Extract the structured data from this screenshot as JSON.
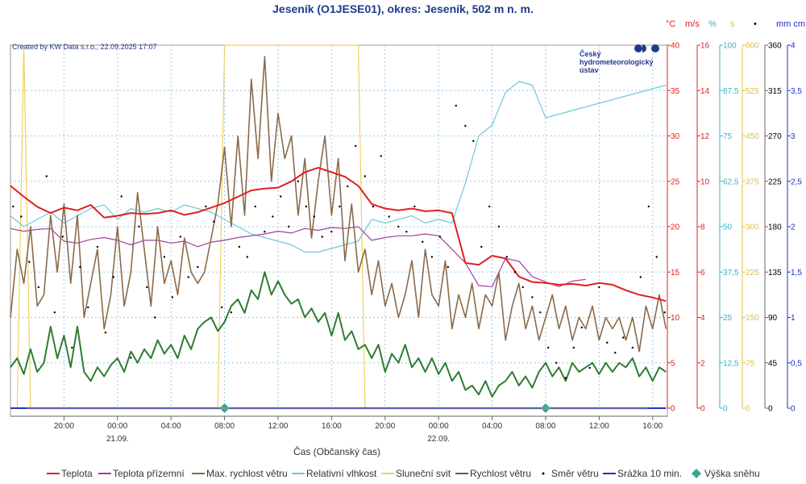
{
  "chart_data": {
    "type": "line",
    "title": "Jeseník (O1JESE01), okres: Jeseník, 502 m n. m.",
    "credit": "Created by KW Data s.r.o., 22.09.2025 17:07",
    "logo_lines": [
      "Český",
      "hydrometeorologický",
      "ústav"
    ],
    "xlabel": "Čas (Občanský čas)",
    "x_ticks": [
      "20:00",
      "00:00",
      "04:00",
      "08:00",
      "12:00",
      "16:00",
      "20:00",
      "00:00",
      "04:00",
      "08:00",
      "12:00",
      "16:00"
    ],
    "x_tick_hours": [
      20,
      24,
      28,
      32,
      36,
      40,
      44,
      48,
      52,
      56,
      60,
      64
    ],
    "date_labels": [
      {
        "label": "21.09.",
        "hour": 24
      },
      {
        "label": "22.09."
      }
    ],
    "date_label_hours": [
      24,
      48
    ],
    "x_range_hours": [
      16,
      65.1
    ],
    "axes": [
      {
        "key": "temp",
        "unit": "°C",
        "color": "#e02020",
        "ticks": [
          "0",
          "5",
          "10",
          "15",
          "20",
          "25",
          "30",
          "35",
          "40"
        ],
        "max": 40
      },
      {
        "key": "wind",
        "unit": "m/s",
        "color": "#e02020",
        "ticks": [
          "0",
          "2",
          "4",
          "6",
          "8",
          "10",
          "12",
          "14",
          "16"
        ],
        "max": 16
      },
      {
        "key": "rh",
        "unit": "%",
        "color": "#40b0c0",
        "ticks": [
          "0",
          "12,5",
          "25",
          "37,5",
          "50",
          "62,5",
          "75",
          "87,5",
          "100"
        ],
        "max": 100
      },
      {
        "key": "sun",
        "unit": "s",
        "color": "#e0c040",
        "ticks": [
          "0",
          "75",
          "150",
          "225",
          "300",
          "375",
          "450",
          "525",
          "600"
        ],
        "max": 600
      },
      {
        "key": "dir",
        "unit": "•",
        "color": "#000000",
        "ticks": [
          "0",
          "45",
          "90",
          "135",
          "180",
          "225",
          "270",
          "315",
          "360"
        ],
        "max": 360
      },
      {
        "key": "precip",
        "unit": "mm cm",
        "color": "#2030c0",
        "ticks": [
          "0",
          "0,5",
          "1",
          "1,5",
          "2",
          "2,5",
          "3",
          "3,5",
          "4"
        ],
        "max": 4
      }
    ],
    "series": [
      {
        "name": "Teplota",
        "color": "#e02020",
        "axis": "temp",
        "hours": [
          16,
          17,
          18,
          19,
          20,
          21,
          22,
          23,
          24,
          25,
          26,
          27,
          28,
          29,
          30,
          31,
          32,
          33,
          34,
          35,
          36,
          37,
          38,
          39,
          40,
          41,
          42,
          43,
          44,
          45,
          46,
          47,
          48,
          49,
          50,
          51,
          52,
          53,
          54,
          55,
          56,
          57,
          58,
          59,
          60,
          61,
          62,
          63,
          64,
          65
        ],
        "values": [
          24.5,
          23.3,
          22.2,
          21.5,
          22.1,
          21.8,
          22.4,
          21.0,
          21.2,
          21.5,
          21.4,
          21.5,
          21.8,
          21.3,
          21.6,
          22.1,
          22.6,
          23.3,
          24.0,
          24.2,
          24.3,
          25.0,
          26.0,
          26.5,
          26.0,
          25.5,
          24.5,
          22.5,
          22.0,
          21.8,
          22.0,
          21.7,
          21.8,
          21.5,
          16.0,
          15.8,
          16.8,
          16.5,
          14.5,
          13.9,
          13.8,
          13.6,
          13.7,
          13.5,
          13.8,
          13.6,
          13.0,
          12.5,
          12.2,
          11.8
        ]
      },
      {
        "name": "Teplota přízemní",
        "color": "#a040a0",
        "axis": "temp",
        "hours": [
          16,
          17,
          18,
          19,
          20,
          21,
          22,
          23,
          24,
          25,
          26,
          27,
          28,
          29,
          30,
          31,
          32,
          33,
          34,
          35,
          36,
          37,
          38,
          39,
          40,
          41,
          42,
          43,
          44,
          45,
          46,
          47,
          48,
          49,
          50,
          51,
          52,
          53,
          54,
          55,
          56,
          57,
          58,
          59
        ],
        "values": [
          19.8,
          19.5,
          19.7,
          19.8,
          18.4,
          18.2,
          18.6,
          18.8,
          18.5,
          18.0,
          18.5,
          18.5,
          18.2,
          18.4,
          17.8,
          18.3,
          18.5,
          18.8,
          19.0,
          19.2,
          19.5,
          19.3,
          19.8,
          19.6,
          19.9,
          19.8,
          20.0,
          18.5,
          18.8,
          19.0,
          19.0,
          19.2,
          19.0,
          17.5,
          16.0,
          13.5,
          13.4,
          16.5,
          16.2,
          14.5,
          13.9,
          13.4,
          14.0,
          14.2
        ]
      },
      {
        "name": "Max. rychlost větru",
        "color": "#8b6a4a",
        "axis": "wind",
        "hours": [
          16,
          16.5,
          17,
          17.5,
          18,
          18.5,
          19,
          19.5,
          20,
          20.5,
          21,
          21.5,
          22,
          22.5,
          23,
          23.5,
          24,
          24.5,
          25,
          25.5,
          26,
          26.5,
          27,
          27.5,
          28,
          28.5,
          29,
          29.5,
          30,
          30.5,
          31,
          31.5,
          32,
          32.5,
          33,
          33.5,
          34,
          34.5,
          35,
          35.5,
          36,
          36.5,
          37,
          37.5,
          38,
          38.5,
          39,
          39.5,
          40,
          40.5,
          41,
          41.5,
          42,
          42.5,
          43,
          43.5,
          44,
          44.5,
          45,
          45.5,
          46,
          46.5,
          47,
          47.5,
          48,
          48.5,
          49,
          49.5,
          50,
          50.5,
          51,
          51.5,
          52,
          52.5,
          53,
          53.5,
          54,
          54.5,
          55,
          55.5,
          56,
          56.5,
          57,
          57.5,
          58,
          58.5,
          59,
          59.5,
          60,
          60.5,
          61,
          61.5,
          62,
          62.5,
          63,
          63.5,
          64,
          64.5,
          65
        ],
        "values": [
          4.0,
          7.0,
          5.5,
          8.0,
          4.5,
          5.0,
          8.5,
          6.0,
          9.0,
          5.5,
          8.5,
          4.0,
          5.5,
          7.0,
          3.5,
          5.0,
          8.0,
          4.5,
          6.0,
          9.5,
          7.0,
          4.5,
          8.0,
          5.5,
          6.5,
          5.0,
          7.5,
          6.0,
          5.5,
          6.0,
          7.5,
          9.0,
          11.5,
          8.0,
          12.0,
          8.5,
          14.5,
          11.0,
          15.5,
          10.0,
          13.0,
          11.0,
          12.0,
          8.5,
          11.0,
          7.5,
          10.0,
          12.0,
          8.5,
          11.0,
          6.5,
          9.0,
          6.0,
          7.0,
          5.0,
          6.5,
          4.5,
          5.5,
          4.0,
          5.0,
          6.5,
          4.0,
          7.0,
          5.0,
          4.5,
          6.5,
          3.5,
          5.0,
          4.0,
          5.5,
          3.5,
          5.0,
          4.5,
          6.0,
          3.0,
          4.5,
          5.5,
          3.5,
          4.5,
          3.0,
          4.0,
          5.0,
          3.5,
          4.5,
          3.0,
          4.0,
          3.5,
          4.5,
          3.0,
          4.0,
          3.5,
          4.0,
          3.0,
          4.0,
          2.5,
          4.5,
          3.5,
          5.0,
          3.5
        ]
      },
      {
        "name": "Relativní vlhkost",
        "color": "#70c8d8",
        "axis": "rh",
        "hours": [
          16,
          17,
          18,
          19,
          20,
          21,
          22,
          23,
          24,
          25,
          26,
          27,
          28,
          29,
          30,
          31,
          32,
          33,
          34,
          35,
          36,
          37,
          38,
          39,
          40,
          41,
          42,
          43,
          44,
          45,
          46,
          47,
          48,
          49,
          50,
          51,
          52,
          53,
          54,
          55,
          56,
          57,
          58,
          59,
          60,
          61,
          62,
          63,
          64,
          65
        ],
        "values": [
          53,
          50,
          52,
          54,
          51,
          53,
          55,
          56,
          52,
          55,
          54,
          55,
          54,
          56,
          55,
          54,
          52,
          50,
          48,
          47,
          46,
          45,
          43,
          43,
          44,
          45,
          46,
          52,
          51,
          52,
          53,
          51,
          52,
          51,
          62,
          75,
          78,
          87,
          90,
          89,
          80,
          81,
          82,
          83,
          84,
          85,
          86,
          87,
          88,
          89
        ]
      },
      {
        "name": "Sluneční svit",
        "color": "#f0d060",
        "axis": "sun",
        "hours": [
          16,
          16.5,
          17,
          17.5,
          18,
          18.5,
          19,
          31.5,
          32,
          33,
          34,
          35,
          36,
          37,
          38,
          39,
          40,
          40.5,
          41,
          41.5,
          42,
          42.5,
          43,
          44,
          65
        ],
        "values": [
          0,
          0,
          600,
          0,
          0,
          0,
          0,
          0,
          600,
          600,
          600,
          600,
          600,
          600,
          600,
          600,
          600,
          600,
          600,
          600,
          600,
          0,
          0,
          0,
          0
        ]
      },
      {
        "name": "Rychlost větru",
        "color": "#2e7d32",
        "axis": "wind",
        "hours": [
          16,
          16.5,
          17,
          17.5,
          18,
          18.5,
          19,
          19.5,
          20,
          20.5,
          21,
          21.5,
          22,
          22.5,
          23,
          23.5,
          24,
          24.5,
          25,
          25.5,
          26,
          26.5,
          27,
          27.5,
          28,
          28.5,
          29,
          29.5,
          30,
          30.5,
          31,
          31.5,
          32,
          32.5,
          33,
          33.5,
          34,
          34.5,
          35,
          35.5,
          36,
          36.5,
          37,
          37.5,
          38,
          38.5,
          39,
          39.5,
          40,
          40.5,
          41,
          41.5,
          42,
          42.5,
          43,
          43.5,
          44,
          44.5,
          45,
          45.5,
          46,
          46.5,
          47,
          47.5,
          48,
          48.5,
          49,
          49.5,
          50,
          50.5,
          51,
          51.5,
          52,
          52.5,
          53,
          53.5,
          54,
          54.5,
          55,
          55.5,
          56,
          56.5,
          57,
          57.5,
          58,
          58.5,
          59,
          59.5,
          60,
          60.5,
          61,
          61.5,
          62,
          62.5,
          63,
          63.5,
          64,
          64.5,
          65
        ],
        "values": [
          1.8,
          2.2,
          1.5,
          2.6,
          1.6,
          2.0,
          3.6,
          2.2,
          3.2,
          1.8,
          3.6,
          1.6,
          1.2,
          1.8,
          1.4,
          1.9,
          2.2,
          1.6,
          2.5,
          2.0,
          2.6,
          2.2,
          3.0,
          2.4,
          2.8,
          2.2,
          3.2,
          2.6,
          3.5,
          3.8,
          4.0,
          3.4,
          3.8,
          4.5,
          4.8,
          4.2,
          5.2,
          4.8,
          6.0,
          5.0,
          5.6,
          5.0,
          4.6,
          4.8,
          4.0,
          4.4,
          3.8,
          4.2,
          3.2,
          4.2,
          3.0,
          3.4,
          2.6,
          2.8,
          2.2,
          2.8,
          1.6,
          2.4,
          2.0,
          2.8,
          1.8,
          2.2,
          1.6,
          2.2,
          1.5,
          2.0,
          1.2,
          1.6,
          0.8,
          1.0,
          0.6,
          1.2,
          0.5,
          1.0,
          1.2,
          1.6,
          1.0,
          1.4,
          0.9,
          1.6,
          2.0,
          1.4,
          1.8,
          1.2,
          2.0,
          1.6,
          1.8,
          2.0,
          1.5,
          2.0,
          1.6,
          2.0,
          1.8,
          2.2,
          1.4,
          1.8,
          1.2,
          1.8,
          1.6
        ]
      },
      {
        "name": "Směr větru",
        "color": "#000000",
        "axis": "dir",
        "type": "scatter",
        "hours": [
          16.2,
          16.8,
          17.4,
          18.1,
          18.7,
          19.3,
          19.9,
          20.6,
          21.2,
          21.8,
          22.5,
          23.1,
          23.7,
          24.3,
          25.0,
          25.6,
          26.2,
          26.8,
          27.5,
          28.1,
          28.7,
          29.3,
          30.0,
          30.6,
          31.2,
          31.8,
          32.5,
          33.1,
          33.7,
          34.3,
          35.0,
          35.6,
          36.2,
          36.8,
          37.5,
          38.1,
          38.7,
          39.3,
          40.0,
          40.6,
          41.2,
          41.8,
          42.5,
          43.1,
          43.7,
          44.3,
          45.0,
          45.6,
          46.2,
          46.8,
          47.5,
          48.1,
          48.7,
          49.3,
          50.0,
          50.6,
          51.2,
          51.8,
          52.5,
          53.1,
          53.7,
          54.3,
          55.0,
          55.6,
          56.2,
          56.8,
          57.5,
          58.1,
          58.7,
          59.3,
          60.0,
          60.6,
          61.2,
          61.8,
          62.5,
          63.1,
          63.7,
          64.3,
          64.9
        ],
        "values": [
          200,
          190,
          145,
          120,
          230,
          95,
          170,
          60,
          140,
          100,
          160,
          75,
          130,
          210,
          50,
          180,
          120,
          90,
          150,
          110,
          170,
          130,
          140,
          200,
          185,
          100,
          95,
          160,
          150,
          200,
          175,
          190,
          210,
          180,
          225,
          200,
          190,
          170,
          175,
          200,
          220,
          260,
          230,
          200,
          250,
          190,
          180,
          175,
          200,
          165,
          150,
          170,
          140,
          300,
          280,
          265,
          160,
          200,
          180,
          150,
          135,
          120,
          110,
          95,
          60,
          45,
          30,
          60,
          80,
          40,
          120,
          65,
          55,
          70,
          60,
          130,
          200,
          150,
          95
        ]
      },
      {
        "name": "Srážka 10 min.",
        "color": "#2030c0",
        "axis": "precip",
        "hours": [
          16,
          65
        ],
        "values": [
          0,
          0
        ]
      },
      {
        "name": "Výška sněhu",
        "color": "#3aa590",
        "axis": "precip",
        "type": "marker",
        "hours": [
          32,
          56
        ],
        "values": [
          0,
          0
        ]
      }
    ],
    "legend": [
      {
        "label": "Teplota",
        "color": "#e02020",
        "style": "line"
      },
      {
        "label": "Teplota přízemní",
        "color": "#a040a0",
        "style": "line"
      },
      {
        "label": "Max. rychlost větru",
        "color": "#8b6a4a",
        "style": "line"
      },
      {
        "label": "Relativní vlhkost",
        "color": "#70c8d8",
        "style": "line"
      },
      {
        "label": "Sluneční svit",
        "color": "#f0d060",
        "style": "line"
      },
      {
        "label": "Rychlost větru",
        "color": "#2e7d32",
        "style": "line"
      },
      {
        "label": "Směr větru",
        "color": "#000000",
        "style": "dot"
      },
      {
        "label": "Srážka 10 min.",
        "color": "#2030c0",
        "style": "line"
      },
      {
        "label": "Výška sněhu",
        "color": "#3aa590",
        "style": "diamond"
      }
    ]
  }
}
